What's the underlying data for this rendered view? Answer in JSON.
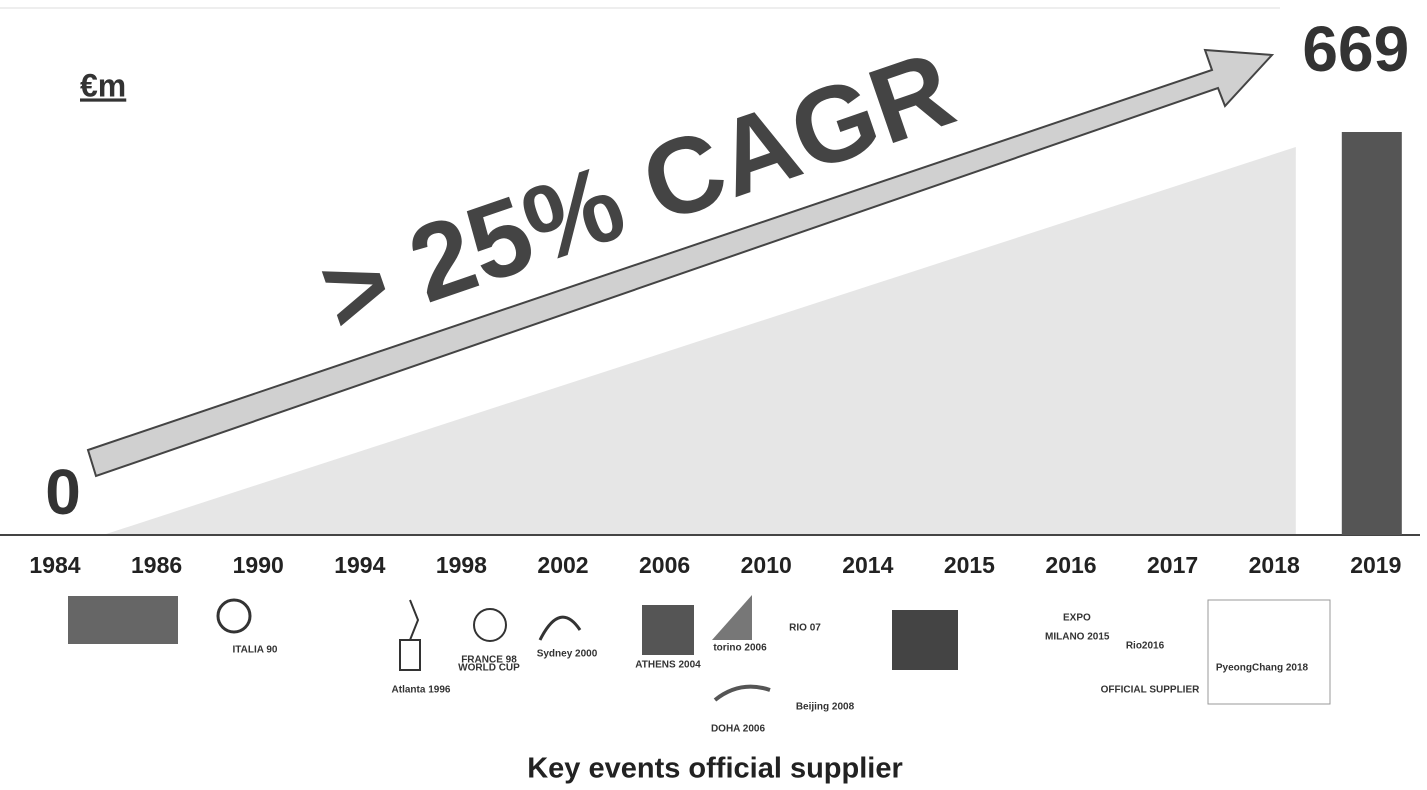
{
  "chart_data": {
    "type": "growth",
    "unit_label": "€m",
    "annotation": "> 25% CAGR",
    "footer": "Key events official supplier",
    "categories": [
      "1984",
      "1986",
      "1990",
      "1994",
      "1998",
      "2002",
      "2006",
      "2010",
      "2014",
      "2015",
      "2016",
      "2017",
      "2018",
      "2019"
    ],
    "values": [
      0,
      null,
      null,
      null,
      null,
      null,
      null,
      null,
      null,
      null,
      null,
      null,
      null,
      669
    ],
    "color": "#555555",
    "area_color": "#e6e6e6",
    "logo_texts": [
      "ITALIA 90",
      "Atlanta 1996",
      "FRANCE 98",
      "WORLD CUP",
      "Sydney 2000",
      "ATHENS 2004",
      "torino 2006",
      "DOHA 2006",
      "RIO 07",
      "Beijing 2008",
      "EXPO",
      "MILANO 2015",
      "Rio2016",
      "OFFICIAL SUPPLIER",
      "PyeongChang 2018"
    ]
  }
}
